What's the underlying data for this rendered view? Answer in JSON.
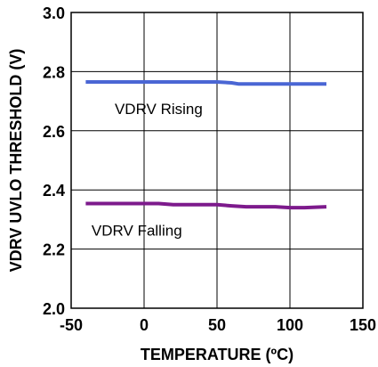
{
  "chart_data": {
    "type": "line",
    "title": "",
    "xlabel": "TEMPERATURE (ºC)",
    "ylabel": "VDRV UVLO THRESHOLD (V)",
    "xlim": [
      -50,
      150
    ],
    "ylim": [
      2.0,
      3.0
    ],
    "xticks": [
      -50,
      0,
      50,
      100,
      150
    ],
    "yticks": [
      2.0,
      2.2,
      2.4,
      2.6,
      2.8,
      3.0
    ],
    "xtick_labels": [
      "-50",
      "0",
      "50",
      "100",
      "150"
    ],
    "ytick_labels": [
      "2.0",
      "2.2",
      "2.4",
      "2.6",
      "2.8",
      "3.0"
    ],
    "grid": true,
    "series": [
      {
        "name": "VDRV Rising",
        "color": "#4a66d4",
        "x": [
          -40,
          0,
          25,
          50,
          60,
          65,
          85,
          100,
          125
        ],
        "y": [
          2.765,
          2.765,
          2.765,
          2.765,
          2.762,
          2.758,
          2.758,
          2.758,
          2.758
        ]
      },
      {
        "name": "VDRV Falling",
        "color": "#7d1a8c",
        "x": [
          -40,
          0,
          10,
          20,
          50,
          60,
          70,
          90,
          100,
          110,
          125
        ],
        "y": [
          2.354,
          2.354,
          2.354,
          2.35,
          2.35,
          2.346,
          2.343,
          2.343,
          2.34,
          2.34,
          2.343
        ]
      }
    ],
    "annotations": [
      {
        "text": "VDRV Rising",
        "series": 0
      },
      {
        "text": "VDRV Falling",
        "series": 1
      }
    ]
  }
}
